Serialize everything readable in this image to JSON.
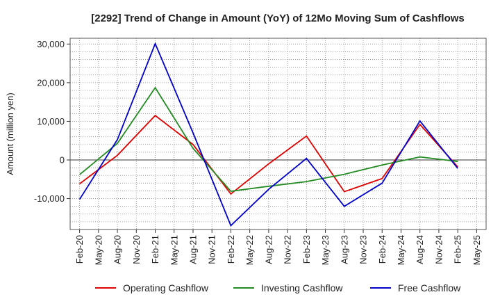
{
  "chart_data": {
    "type": "line",
    "title": "[2292]  Trend of Change in Amount (YoY) of 12Mo Moving Sum of Cashflows",
    "xlabel": "",
    "ylabel": "Amount (million yen)",
    "ylim": [
      -18000,
      31500
    ],
    "yticks": [
      30000,
      20000,
      10000,
      0,
      -10000
    ],
    "ytick_labels": [
      "30,000",
      "20,000",
      "10,000",
      "0",
      "-10,000"
    ],
    "x": [
      "Feb-20",
      "May-20",
      "Aug-20",
      "Nov-20",
      "Feb-21",
      "May-21",
      "Aug-21",
      "Nov-21",
      "Feb-22",
      "May-22",
      "Aug-22",
      "Nov-22",
      "Feb-23",
      "May-23",
      "Aug-23",
      "Nov-23",
      "Feb-24",
      "May-24",
      "Aug-24",
      "Nov-24",
      "Feb-25",
      "May-25"
    ],
    "grid": true,
    "legend_position": "bottom",
    "series": [
      {
        "name": "Operating Cashflow",
        "color": "#e00000",
        "values": [
          -6200,
          null,
          1200,
          null,
          11500,
          null,
          4000,
          null,
          -8800,
          null,
          -1000,
          null,
          6200,
          null,
          -8200,
          null,
          -4800,
          null,
          9200,
          null,
          -1800,
          null
        ]
      },
      {
        "name": "Investing Cashflow",
        "color": "#228b22",
        "values": [
          -3800,
          null,
          4300,
          null,
          18700,
          null,
          3000,
          null,
          -8100,
          null,
          -6800,
          null,
          -5600,
          null,
          -3700,
          null,
          -1300,
          null,
          800,
          null,
          -400,
          null
        ]
      },
      {
        "name": "Free Cashflow",
        "color": "#0000cc",
        "values": [
          -10200,
          null,
          5300,
          null,
          30100,
          null,
          7000,
          null,
          -17000,
          null,
          -7600,
          null,
          400,
          null,
          -12000,
          null,
          -6000,
          null,
          10100,
          null,
          -2200,
          null
        ]
      }
    ]
  }
}
